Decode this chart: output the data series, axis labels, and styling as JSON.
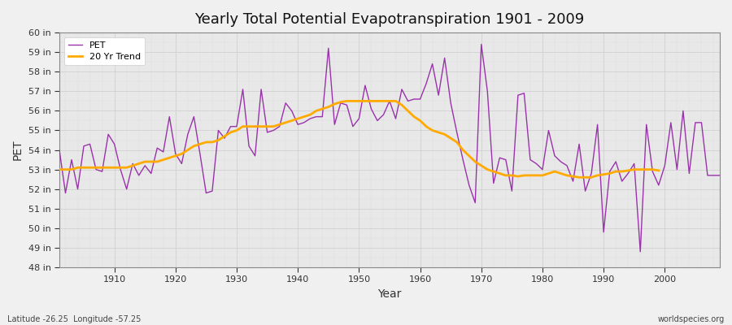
{
  "title": "Yearly Total Potential Evapotranspiration 1901 - 2009",
  "xlabel": "Year",
  "ylabel": "PET",
  "bottom_left_label": "Latitude -26.25  Longitude -57.25",
  "bottom_right_label": "worldspecies.org",
  "background_color": "#f0f0f0",
  "plot_bg_color": "#e8e8e8",
  "grid_color": "#d0d0d0",
  "pet_color": "#9933aa",
  "trend_color": "#ffaa00",
  "ylim": [
    48,
    60
  ],
  "ytick_labels": [
    "48 in",
    "49 in",
    "50 in",
    "51 in",
    "52 in",
    "53 in",
    "54 in",
    "55 in",
    "56 in",
    "57 in",
    "58 in",
    "59 in",
    "60 in"
  ],
  "ytick_values": [
    48,
    49,
    50,
    51,
    52,
    53,
    54,
    55,
    56,
    57,
    58,
    59,
    60
  ],
  "years": [
    1901,
    1902,
    1903,
    1904,
    1905,
    1906,
    1907,
    1908,
    1909,
    1910,
    1911,
    1912,
    1913,
    1914,
    1915,
    1916,
    1917,
    1918,
    1919,
    1920,
    1921,
    1922,
    1923,
    1924,
    1925,
    1926,
    1927,
    1928,
    1929,
    1930,
    1931,
    1932,
    1933,
    1934,
    1935,
    1936,
    1937,
    1938,
    1939,
    1940,
    1941,
    1942,
    1943,
    1944,
    1945,
    1946,
    1947,
    1948,
    1949,
    1950,
    1951,
    1952,
    1953,
    1954,
    1955,
    1956,
    1957,
    1958,
    1959,
    1960,
    1961,
    1962,
    1963,
    1964,
    1965,
    1966,
    1967,
    1968,
    1969,
    1970,
    1971,
    1972,
    1973,
    1974,
    1975,
    1976,
    1977,
    1978,
    1979,
    1980,
    1981,
    1982,
    1983,
    1984,
    1985,
    1986,
    1987,
    1988,
    1989,
    1990,
    1991,
    1992,
    1993,
    1994,
    1995,
    1996,
    1997,
    1998,
    1999,
    2000,
    2001,
    2002,
    2003,
    2004,
    2005,
    2006,
    2007,
    2008,
    2009
  ],
  "pet_values": [
    54.0,
    51.8,
    53.5,
    52.0,
    54.2,
    54.3,
    53.0,
    52.9,
    54.8,
    54.3,
    53.0,
    52.0,
    53.3,
    52.7,
    53.2,
    52.8,
    54.1,
    53.9,
    55.7,
    53.8,
    53.3,
    54.8,
    55.7,
    53.8,
    51.8,
    51.9,
    55.0,
    54.6,
    55.2,
    55.2,
    57.1,
    54.2,
    53.7,
    57.1,
    54.9,
    55.0,
    55.2,
    56.4,
    56.0,
    55.3,
    55.4,
    55.6,
    55.7,
    55.7,
    59.2,
    55.3,
    56.4,
    56.3,
    55.2,
    55.6,
    57.3,
    56.1,
    55.5,
    55.8,
    56.5,
    55.6,
    57.1,
    56.5,
    56.6,
    56.6,
    57.4,
    58.4,
    56.8,
    58.7,
    56.4,
    54.9,
    53.5,
    52.2,
    51.3,
    59.4,
    57.0,
    52.3,
    53.6,
    53.5,
    51.9,
    56.8,
    56.9,
    53.5,
    53.3,
    53.0,
    55.0,
    53.7,
    53.4,
    53.2,
    52.4,
    54.3,
    51.9,
    52.8,
    55.3,
    49.8,
    52.9,
    53.4,
    52.4,
    52.8,
    53.3,
    48.8,
    55.3,
    52.9,
    52.2,
    53.2,
    55.4,
    53.0,
    56.0,
    52.8,
    55.4,
    55.4,
    52.7,
    52.7,
    52.7
  ],
  "trend_values": [
    53.0,
    53.0,
    53.0,
    53.1,
    53.1,
    53.1,
    53.1,
    53.1,
    53.1,
    53.1,
    53.1,
    53.1,
    53.2,
    53.3,
    53.4,
    53.4,
    53.4,
    53.5,
    53.6,
    53.7,
    53.8,
    54.0,
    54.2,
    54.3,
    54.4,
    54.4,
    54.5,
    54.7,
    54.9,
    55.0,
    55.2,
    55.2,
    55.2,
    55.2,
    55.2,
    55.2,
    55.3,
    55.4,
    55.5,
    55.6,
    55.7,
    55.8,
    56.0,
    56.1,
    56.2,
    56.35,
    56.45,
    56.5,
    56.5,
    56.5,
    56.5,
    56.5,
    56.5,
    56.5,
    56.5,
    56.5,
    56.3,
    56.0,
    55.7,
    55.5,
    55.2,
    55.0,
    54.9,
    54.8,
    54.6,
    54.4,
    54.0,
    53.7,
    53.4,
    53.2,
    53.0,
    52.9,
    52.8,
    52.7,
    52.7,
    52.65,
    52.7,
    52.7,
    52.7,
    52.7,
    52.8,
    52.9,
    52.8,
    52.7,
    52.65,
    52.6,
    52.6,
    52.6,
    52.7,
    52.75,
    52.8,
    52.9,
    52.9,
    52.95,
    53.0,
    53.0,
    53.0,
    53.0,
    52.95,
    null,
    null,
    null,
    null,
    null,
    null,
    null,
    null,
    null,
    null
  ]
}
